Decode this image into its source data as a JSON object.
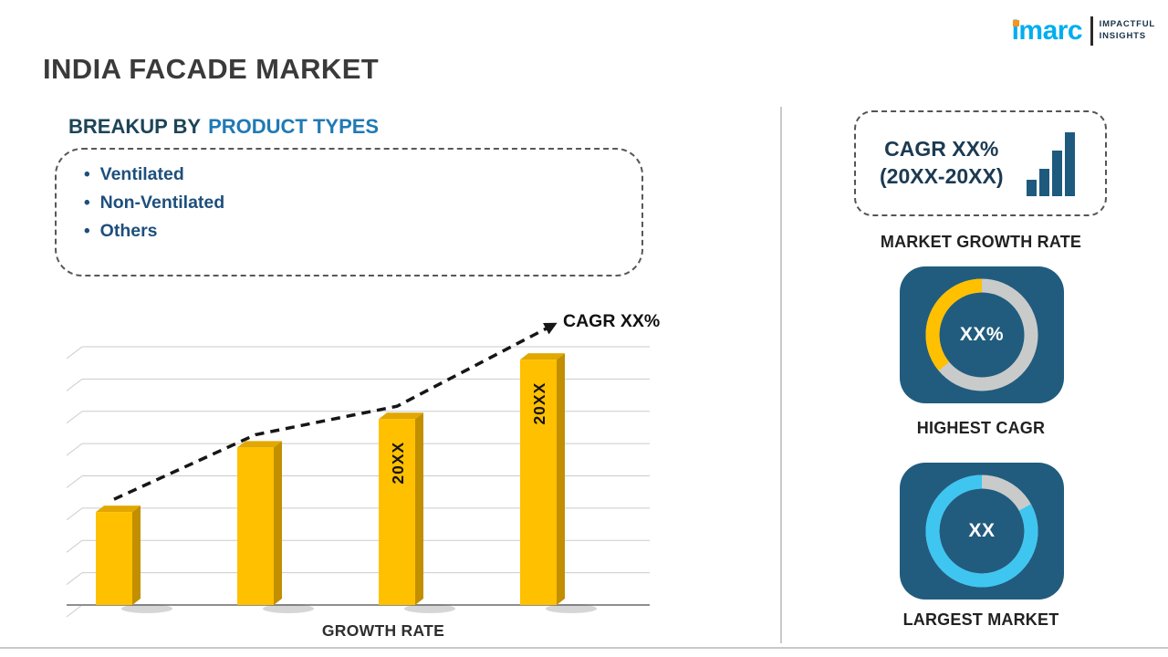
{
  "colors": {
    "title_text": "#3A3A3A",
    "heading_dark": "#1C4458",
    "heading_accent": "#1F7AB4",
    "list_text": "#1E4F7C",
    "bar_yellow": "#FFC000",
    "tile_blue": "#215C7E",
    "donut_track": "#C9CBCB",
    "donut_yellow": "#FFC000",
    "donut_cyan": "#3EC6F1",
    "navy_text": "#1C3A52",
    "logo_blue": "#00AEEF",
    "logo_orange": "#F7941E"
  },
  "header": {
    "title": "INDIA FACADE MARKET",
    "logo_name": "imarc",
    "logo_tagline_line1": "IMPACTFUL",
    "logo_tagline_line2": "INSIGHTS"
  },
  "left_panel": {
    "heading_prefix": "BREAKUP BY",
    "heading_accent": "PRODUCT TYPES",
    "product_types": [
      "Ventilated",
      "Non-Ventilated",
      "Others"
    ]
  },
  "right_panel": {
    "cagr_line1": "CAGR XX%",
    "cagr_line2": "(20XX-20XX)",
    "market_growth_rate_label": "MARKET GROWTH RATE"
  },
  "chart_data": [
    {
      "type": "bar",
      "title": "",
      "categories": [
        "",
        "",
        "20XX",
        "20XX"
      ],
      "values": [
        36,
        61,
        72,
        95
      ],
      "ylim": [
        0,
        100
      ],
      "xlabel": "GROWTH RATE",
      "ylabel": "",
      "grid": true,
      "bar_color": "#FFC000",
      "trend_label": "CAGR XX%",
      "trend_style": "dashed-arrow-up"
    },
    {
      "type": "pie",
      "subtype": "donut",
      "label": "HIGHEST CAGR",
      "center_text": "XX%",
      "slices": [
        {
          "name": "highlight",
          "value": 36,
          "color": "#FFC000"
        },
        {
          "name": "remainder",
          "value": 64,
          "color": "#C9CBCB"
        }
      ]
    },
    {
      "type": "pie",
      "subtype": "donut",
      "label": "LARGEST MARKET",
      "center_text": "XX",
      "slices": [
        {
          "name": "highlight",
          "value": 83,
          "color": "#3EC6F1"
        },
        {
          "name": "remainder",
          "value": 17,
          "color": "#C9CBCB"
        }
      ]
    }
  ]
}
